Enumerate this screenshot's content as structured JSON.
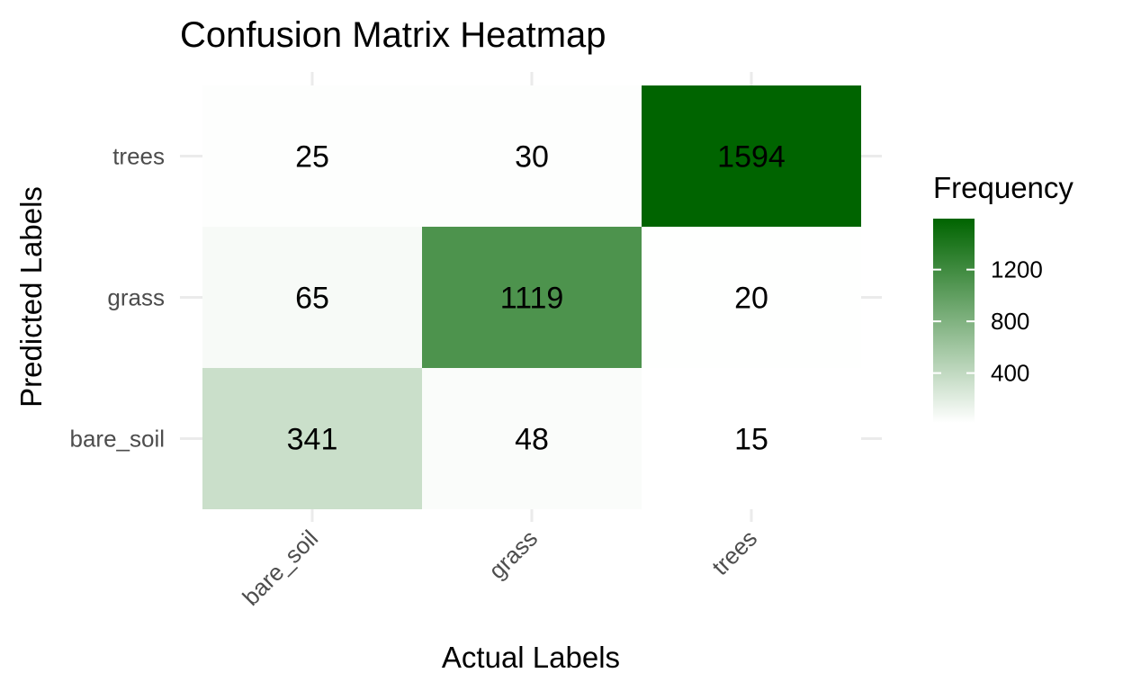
{
  "chart_data": {
    "type": "heatmap",
    "title": "Confusion Matrix Heatmap",
    "xlabel": "Actual Labels",
    "ylabel": "Predicted Labels",
    "x_categories": [
      "bare_soil",
      "grass",
      "trees"
    ],
    "y_categories": [
      "bare_soil",
      "grass",
      "trees"
    ],
    "values": [
      [
        341,
        48,
        15
      ],
      [
        65,
        1119,
        20
      ],
      [
        25,
        30,
        1594
      ]
    ],
    "legend": {
      "title": "Frequency",
      "ticks": [
        400,
        800,
        1200
      ],
      "range": [
        15,
        1594
      ],
      "position": "right"
    },
    "colors": {
      "low": "#ffffff",
      "high": "#006400"
    },
    "grid": true
  }
}
